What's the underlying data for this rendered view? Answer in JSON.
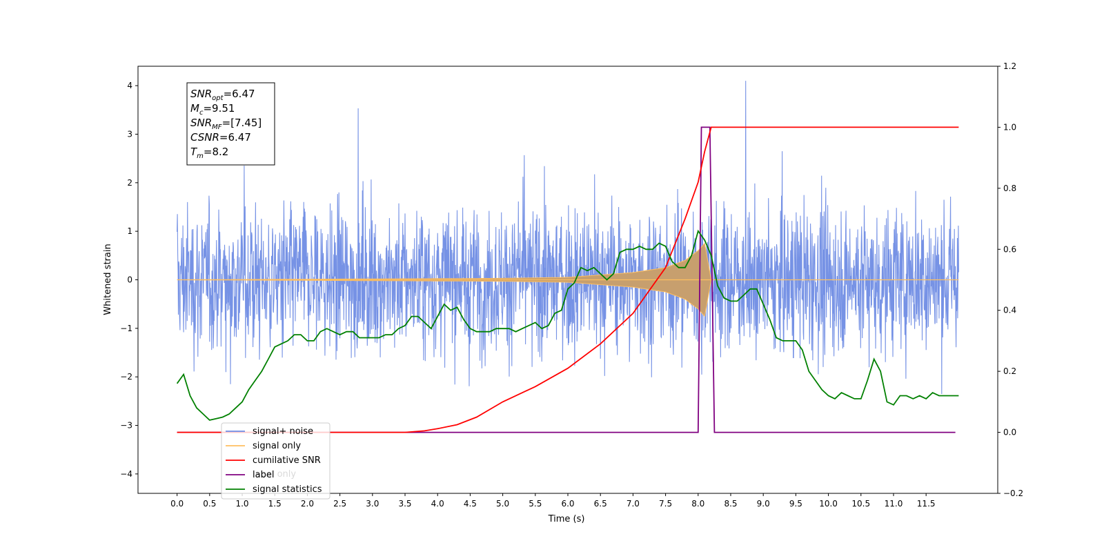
{
  "chart_data": {
    "type": "line",
    "title": "",
    "xlabel": "Time (s)",
    "ylabel": "Whitened strain",
    "xlim": [
      -0.6,
      12.6
    ],
    "ylim": [
      -4.4,
      4.4
    ],
    "y2lim": [
      -0.2,
      1.2
    ],
    "xticks": [
      "0.0",
      "0.5",
      "1.0",
      "1.5",
      "2.0",
      "2.5",
      "3.0",
      "3.5",
      "4.0",
      "4.5",
      "5.0",
      "5.5",
      "6.0",
      "6.5",
      "7.0",
      "7.5",
      "8.0",
      "8.5",
      "9.0",
      "9.5",
      "10.0",
      "10.5",
      "11.0",
      "11.5"
    ],
    "yticks": [
      "4",
      "3",
      "2",
      "1",
      "0",
      "−1",
      "−2",
      "−3",
      "−4"
    ],
    "y2ticks": [
      "1.2",
      "1.0",
      "0.8",
      "0.6",
      "0.4",
      "0.2",
      "0.0",
      "−0.2"
    ],
    "annotation": [
      {
        "sym": "SNR",
        "sub": "opt",
        "val": "=6.47"
      },
      {
        "sym": "M",
        "sub": "c",
        "val": "=9.51"
      },
      {
        "sym": "SNR",
        "sub": "MF",
        "val": "=[7.45]"
      },
      {
        "sym": "CSNR",
        "sub": "",
        "val": "=6.47"
      },
      {
        "sym": "T",
        "sub": "m",
        "val": "=8.2"
      }
    ],
    "legend": {
      "location": "lower-left",
      "entries": [
        {
          "label": "signal+ noise",
          "color": "#6f8ce4"
        },
        {
          "label": "signal only",
          "color": "#ffbf5f"
        },
        {
          "label": "cumilative SNR",
          "color": "#ff0000"
        },
        {
          "label": "label",
          "color": "#800080"
        },
        {
          "label": "signal statistics",
          "color": "#008000"
        }
      ],
      "hidden_entry": "label only"
    },
    "series": [
      {
        "name": "signal+ noise",
        "axis": "left",
        "color": "#6f8ce4",
        "description_range": [
          -3.8,
          4.1
        ],
        "x_range": [
          0.0,
          12.0
        ]
      },
      {
        "name": "signal only",
        "axis": "left",
        "color": "#ffbf5f",
        "envelope_x": [
          0.0,
          5.0,
          6.0,
          7.0,
          7.5,
          7.8,
          8.0,
          8.1,
          8.2
        ],
        "envelope_y": [
          0.0,
          0.03,
          0.05,
          0.15,
          0.25,
          0.4,
          0.6,
          0.75,
          0.0
        ]
      },
      {
        "name": "cumilative SNR",
        "axis": "right",
        "color": "#ff0000",
        "x": [
          0.0,
          3.5,
          3.8,
          4.0,
          4.3,
          4.6,
          5.0,
          5.5,
          6.0,
          6.5,
          7.0,
          7.5,
          7.8,
          8.0,
          8.1,
          8.2,
          12.0
        ],
        "y": [
          0.0,
          0.0,
          0.005,
          0.012,
          0.025,
          0.05,
          0.1,
          0.15,
          0.21,
          0.29,
          0.39,
          0.54,
          0.7,
          0.82,
          0.92,
          1.0,
          1.0
        ]
      },
      {
        "name": "label",
        "axis": "right",
        "color": "#800080",
        "x": [
          0.0,
          8.0,
          8.05,
          8.18,
          8.25,
          11.95
        ],
        "y": [
          0.0,
          0.0,
          1.0,
          1.0,
          0.0,
          0.0
        ]
      },
      {
        "name": "signal statistics",
        "axis": "right",
        "color": "#008000",
        "x": [
          0.0,
          0.1,
          0.2,
          0.3,
          0.4,
          0.5,
          0.6,
          0.7,
          0.8,
          0.9,
          1.0,
          1.1,
          1.2,
          1.3,
          1.4,
          1.5,
          1.6,
          1.7,
          1.8,
          1.9,
          2.0,
          2.1,
          2.2,
          2.3,
          2.4,
          2.5,
          2.6,
          2.7,
          2.8,
          2.9,
          3.0,
          3.1,
          3.2,
          3.3,
          3.4,
          3.5,
          3.6,
          3.7,
          3.8,
          3.9,
          4.0,
          4.1,
          4.2,
          4.3,
          4.4,
          4.5,
          4.6,
          4.7,
          4.8,
          4.9,
          5.0,
          5.1,
          5.2,
          5.3,
          5.4,
          5.5,
          5.6,
          5.7,
          5.8,
          5.9,
          6.0,
          6.1,
          6.2,
          6.3,
          6.4,
          6.5,
          6.6,
          6.7,
          6.8,
          6.9,
          7.0,
          7.1,
          7.2,
          7.3,
          7.4,
          7.5,
          7.6,
          7.7,
          7.8,
          7.9,
          8.0,
          8.1,
          8.2,
          8.3,
          8.4,
          8.5,
          8.6,
          8.7,
          8.8,
          8.9,
          9.0,
          9.1,
          9.2,
          9.3,
          9.4,
          9.5,
          9.6,
          9.7,
          9.8,
          9.9,
          10.0,
          10.1,
          10.2,
          10.3,
          10.4,
          10.5,
          10.6,
          10.7,
          10.8,
          10.9,
          11.0,
          11.1,
          11.2,
          11.3,
          11.4,
          11.5,
          11.6,
          11.7,
          11.8,
          11.9,
          12.0
        ],
        "y": [
          0.16,
          0.19,
          0.12,
          0.08,
          0.06,
          0.04,
          0.045,
          0.05,
          0.06,
          0.08,
          0.1,
          0.14,
          0.17,
          0.2,
          0.24,
          0.28,
          0.29,
          0.3,
          0.32,
          0.32,
          0.3,
          0.3,
          0.33,
          0.34,
          0.33,
          0.32,
          0.33,
          0.33,
          0.31,
          0.31,
          0.31,
          0.31,
          0.32,
          0.32,
          0.34,
          0.35,
          0.38,
          0.38,
          0.36,
          0.34,
          0.38,
          0.42,
          0.4,
          0.41,
          0.37,
          0.34,
          0.33,
          0.33,
          0.33,
          0.34,
          0.34,
          0.34,
          0.33,
          0.34,
          0.35,
          0.36,
          0.34,
          0.35,
          0.39,
          0.4,
          0.47,
          0.49,
          0.54,
          0.53,
          0.54,
          0.52,
          0.5,
          0.52,
          0.59,
          0.6,
          0.6,
          0.61,
          0.6,
          0.6,
          0.62,
          0.61,
          0.56,
          0.54,
          0.54,
          0.58,
          0.66,
          0.63,
          0.58,
          0.48,
          0.44,
          0.43,
          0.43,
          0.45,
          0.47,
          0.47,
          0.42,
          0.37,
          0.31,
          0.3,
          0.3,
          0.3,
          0.27,
          0.2,
          0.17,
          0.14,
          0.12,
          0.11,
          0.13,
          0.12,
          0.11,
          0.11,
          0.17,
          0.24,
          0.2,
          0.1,
          0.09,
          0.12,
          0.12,
          0.11,
          0.12,
          0.11,
          0.13,
          0.12,
          0.12,
          0.12,
          0.12
        ]
      }
    ]
  }
}
